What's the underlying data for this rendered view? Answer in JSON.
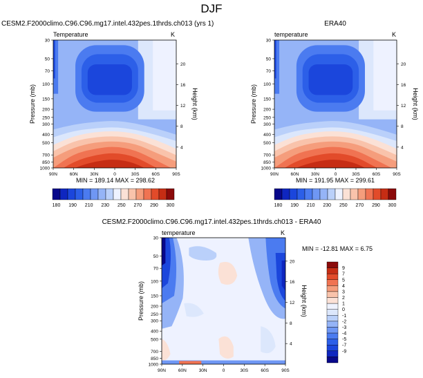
{
  "page": {
    "title": "DJF"
  },
  "colors": {
    "blues": [
      "#08088a",
      "#0e26c0",
      "#1b46dc",
      "#2c5fe8",
      "#4b7bf0",
      "#6f97f4",
      "#95b4f7",
      "#bad0fa",
      "#dce7fc"
    ],
    "neutral": "#eef2ff",
    "reds": [
      "#fbe1d6",
      "#f9c3ab",
      "#f59d7c",
      "#f07352",
      "#e24b2a",
      "#c62d14",
      "#8b0a0a"
    ]
  },
  "chart_data": [
    {
      "type": "heatmap",
      "id": "model",
      "title": "CESM2.F2000climo.C96.C96.mg17.intel.432pes.1thrds.ch013 (yrs 1)",
      "left_label": "Temperature",
      "right_label": "K",
      "ylabel": "Pressure (mb)",
      "ylabel_right": "Height (km)",
      "y_ticks": [
        "30",
        "50",
        "70",
        "100",
        "150",
        "200",
        "250",
        "300",
        "400",
        "500",
        "700",
        "850",
        "1000"
      ],
      "y_right_ticks": [
        "20",
        "16",
        "12",
        "8",
        "4"
      ],
      "x_ticks": [
        "90N",
        "60N",
        "30N",
        "0",
        "30S",
        "60S",
        "90S"
      ],
      "stats": "MIN = 189.14   MAX = 298.62",
      "colorbar_labels": [
        "180",
        "190",
        "210",
        "230",
        "250",
        "270",
        "290",
        "300"
      ]
    },
    {
      "type": "heatmap",
      "id": "obs",
      "title": "ERA40",
      "left_label": "temperature",
      "right_label": "K",
      "ylabel": "Pressure (mb)",
      "ylabel_right": "Height (km)",
      "y_ticks": [
        "30",
        "50",
        "70",
        "100",
        "150",
        "200",
        "250",
        "300",
        "400",
        "500",
        "700",
        "850",
        "1000"
      ],
      "y_right_ticks": [
        "20",
        "16",
        "12",
        "8",
        "4"
      ],
      "x_ticks": [
        "90N",
        "60N",
        "30N",
        "0",
        "30S",
        "60S",
        "90S"
      ],
      "stats": "MIN = 191.95   MAX = 299.61",
      "colorbar_labels": [
        "180",
        "190",
        "210",
        "230",
        "250",
        "270",
        "290",
        "300"
      ]
    },
    {
      "type": "heatmap",
      "id": "diff",
      "title": "CESM2.F2000climo.C96.C96.mg17.intel.432pes.1thrds.ch013 - ERA40",
      "left_label": "temperature",
      "right_label": "K",
      "ylabel": "Pressure (mb)",
      "ylabel_right": "Height (km)",
      "y_ticks": [
        "30",
        "50",
        "70",
        "100",
        "150",
        "200",
        "250",
        "300",
        "400",
        "500",
        "700",
        "850",
        "1000"
      ],
      "y_right_ticks": [
        "20",
        "16",
        "12",
        "8",
        "4"
      ],
      "x_ticks": [
        "90N",
        "60N",
        "30N",
        "0",
        "30S",
        "60S",
        "90S"
      ],
      "stats": "MIN = -12.81  MAX =  6.75",
      "colorbar_labels": [
        "9",
        "7",
        "5",
        "4",
        "3",
        "2",
        "1",
        "0",
        "-1",
        "-2",
        "-3",
        "-4",
        "-5",
        "-7",
        "-9"
      ]
    }
  ]
}
